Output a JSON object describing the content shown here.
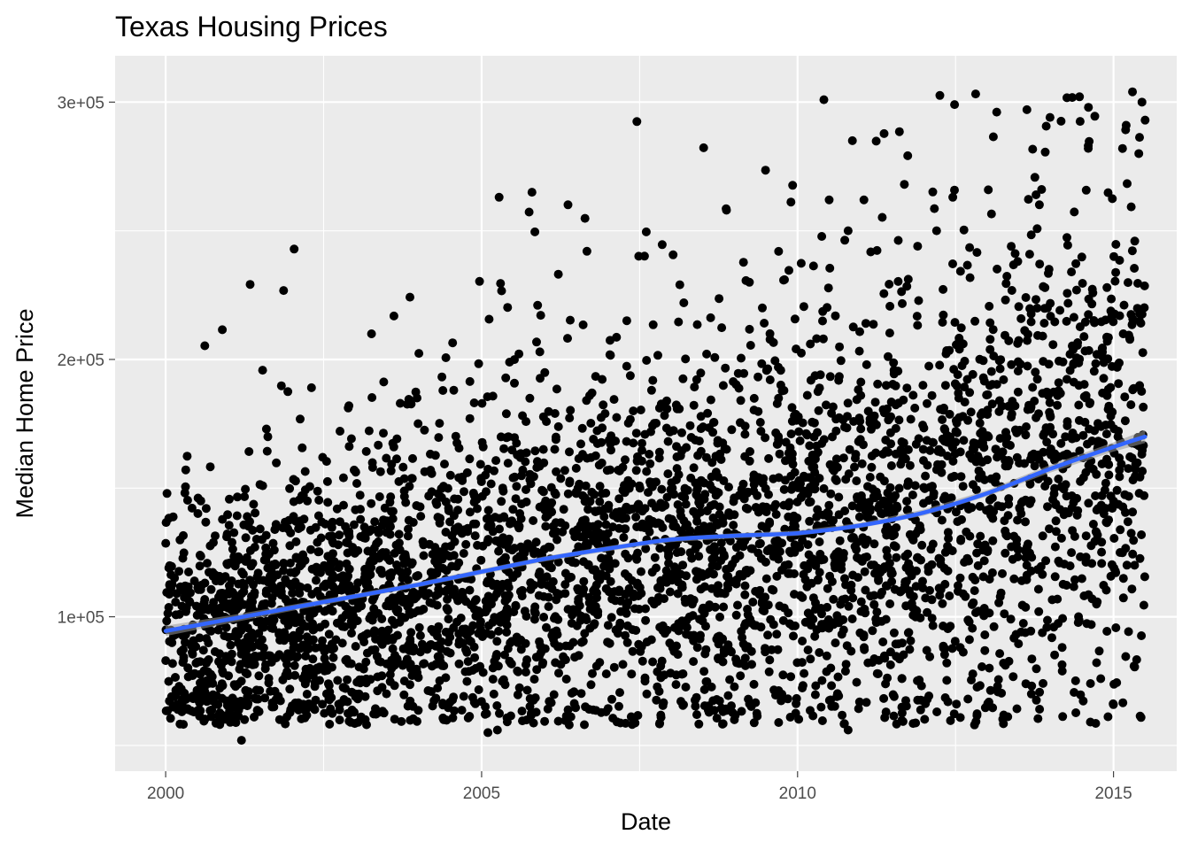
{
  "chart_data": {
    "type": "scatter",
    "title": "Texas Housing Prices",
    "xlabel": "Date",
    "ylabel": "Median Home Price",
    "x_ticks": [
      {
        "value": 2000,
        "label": "2000"
      },
      {
        "value": 2005,
        "label": "2005"
      },
      {
        "value": 2010,
        "label": "2010"
      },
      {
        "value": 2015,
        "label": "2015"
      }
    ],
    "y_ticks": [
      {
        "value": 100000,
        "label": "1e+05"
      },
      {
        "value": 200000,
        "label": "2e+05"
      },
      {
        "value": 300000,
        "label": "3e+05"
      }
    ],
    "xlim": [
      1999.2,
      2016.0
    ],
    "ylim": [
      40000,
      318000
    ],
    "grid": true,
    "legend": "none",
    "colors": {
      "panel_bg": "#ebebeb",
      "grid": "#ffffff",
      "points": "#000000",
      "smooth": "#3366ff",
      "ribbon": "#999999"
    },
    "scatter_summary": {
      "x_range": [
        2000.0,
        2015.5
      ],
      "y_range": [
        50000,
        304000
      ],
      "approx_points": "thousands of monthly city medians"
    },
    "smooth_line": {
      "x": [
        2000.0,
        2001.0,
        2002.0,
        2003.0,
        2004.0,
        2005.0,
        2006.0,
        2007.0,
        2008.0,
        2009.0,
        2010.0,
        2011.0,
        2012.0,
        2013.0,
        2014.0,
        2015.0,
        2015.5
      ],
      "y": [
        94500,
        99000,
        103500,
        108000,
        112500,
        117500,
        122500,
        126500,
        130000,
        131500,
        132500,
        135500,
        140500,
        148000,
        157500,
        166000,
        170000
      ],
      "ribbon_halfwidth": [
        2000,
        1500,
        1200,
        1000,
        1000,
        1000,
        1000,
        1000,
        1000,
        1000,
        1000,
        1000,
        1200,
        1200,
        1500,
        1800,
        2500
      ]
    },
    "notable_points": [
      {
        "x": 2015.3,
        "y": 304000
      },
      {
        "x": 2015.45,
        "y": 300000
      },
      {
        "x": 2015.5,
        "y": 293000
      },
      {
        "x": 2015.2,
        "y": 291000
      },
      {
        "x": 2014.6,
        "y": 283000
      },
      {
        "x": 2014.6,
        "y": 282000
      },
      {
        "x": 2015.4,
        "y": 280000
      },
      {
        "x": 2010.5,
        "y": 262000
      },
      {
        "x": 2011.05,
        "y": 262000
      },
      {
        "x": 2010.8,
        "y": 250000
      },
      {
        "x": 2012.2,
        "y": 250000
      },
      {
        "x": 2011.9,
        "y": 244000
      },
      {
        "x": 2009.7,
        "y": 242000
      },
      {
        "x": 2008.2,
        "y": 222000
      },
      {
        "x": 2002.9,
        "y": 182000
      },
      {
        "x": 2001.2,
        "y": 52000
      },
      {
        "x": 2005.1,
        "y": 55000
      },
      {
        "x": 2005.25,
        "y": 56000
      },
      {
        "x": 2010.8,
        "y": 56000
      },
      {
        "x": 2012.8,
        "y": 58000
      },
      {
        "x": 2004.4,
        "y": 60000
      },
      {
        "x": 2009.0,
        "y": 60000
      },
      {
        "x": 2011.4,
        "y": 63000
      },
      {
        "x": 2013.7,
        "y": 70000
      }
    ]
  }
}
